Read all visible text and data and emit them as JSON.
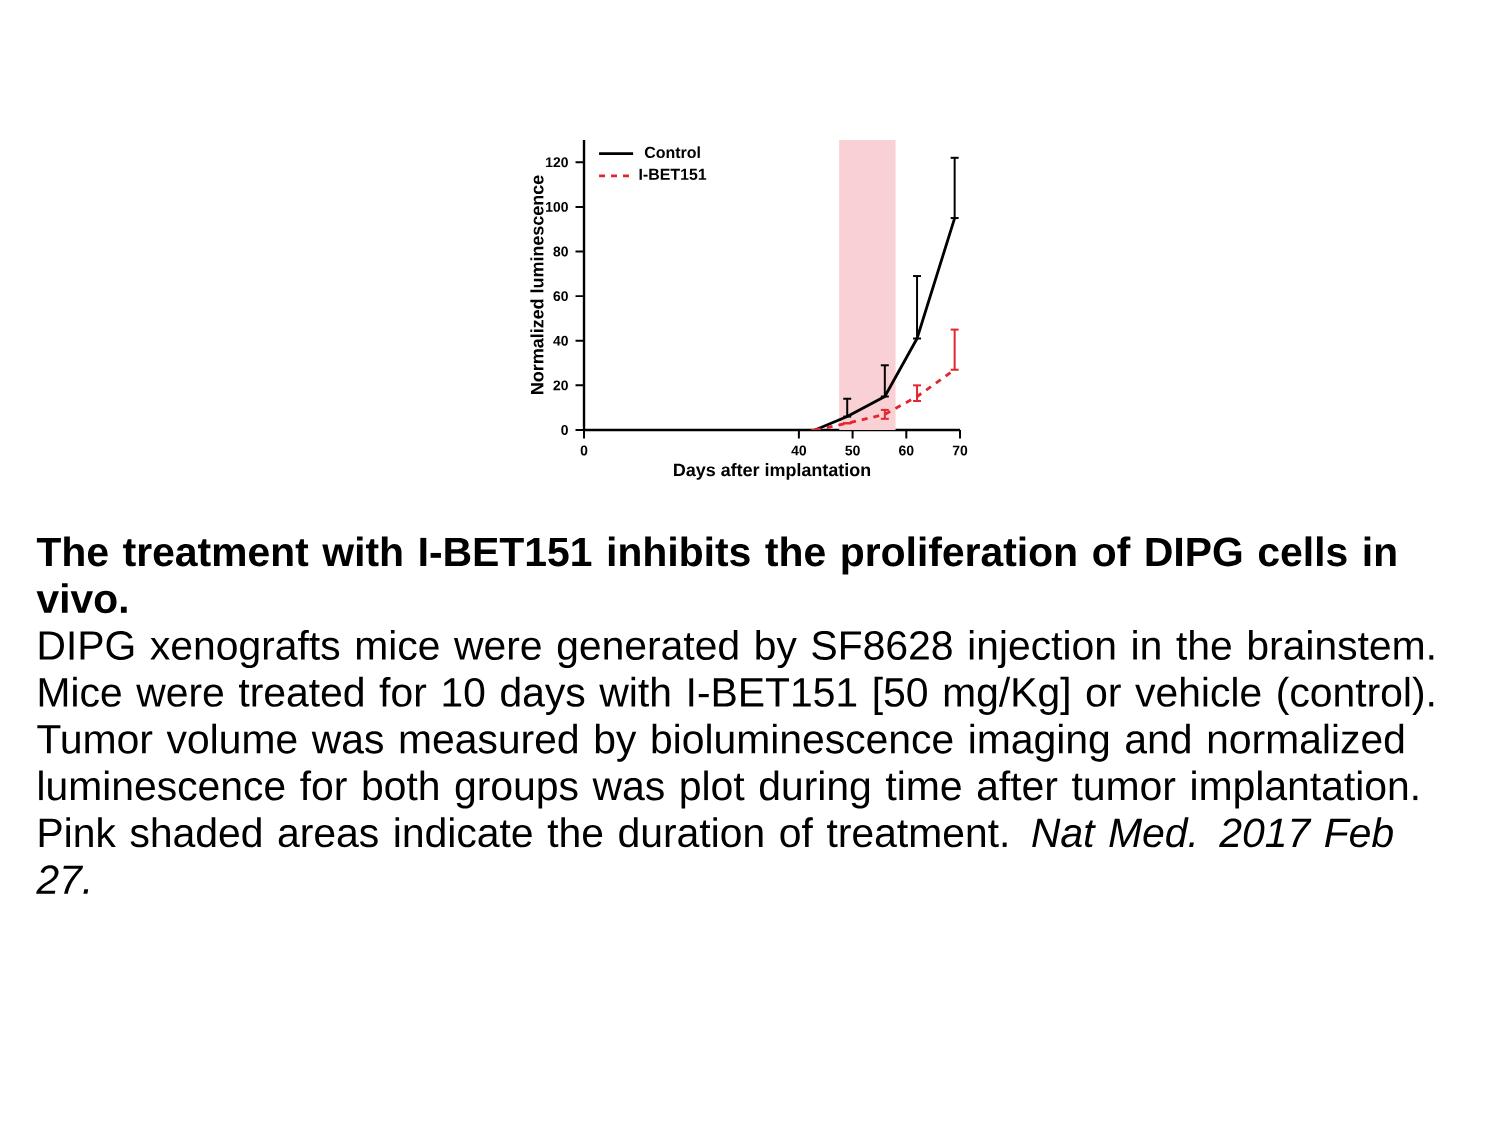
{
  "chart_data": {
    "type": "line",
    "title": "The treatment with I-BET151 inhibits the proliferation of DIPG cells in vivo.",
    "xlabel": "Days after implantation",
    "ylabel": "Normalized luminescence",
    "x": [
      43,
      49,
      56,
      62,
      69
    ],
    "series": [
      {
        "name": "Control",
        "color": "#000000",
        "line_style": "solid",
        "values": [
          0,
          6,
          15,
          41,
          95
        ],
        "errors": [
          null,
          [
            6,
            14
          ],
          [
            15,
            29
          ],
          [
            41,
            69
          ],
          [
            95,
            122
          ]
        ]
      },
      {
        "name": "I-BET151",
        "color": "#e0262f",
        "line_style": "dashed",
        "values": [
          0,
          3,
          7,
          15,
          27
        ],
        "errors": [
          null,
          null,
          [
            5,
            9
          ],
          [
            13,
            20
          ],
          [
            27,
            45
          ]
        ]
      }
    ],
    "bands": [
      {
        "axis": "x",
        "from": 47.5,
        "to": 58,
        "color": "#f9d0d3"
      }
    ],
    "xlim": [
      0,
      70
    ],
    "xticks": [
      0,
      40,
      50,
      60,
      70
    ],
    "ylim": [
      0,
      130
    ],
    "yticks": [
      0,
      20,
      40,
      60,
      80,
      100,
      120
    ],
    "legend": "top left",
    "grid": false,
    "marker": "none",
    "annotations": [
      "DIPG xenografts mice were generated by SF8628 injection in the brainstem. Mice were treated for 10 days with I-BET151 [50 mg/Kg] or vehicle (control). Tumor volume was measured by bioluminescence imaging and normalized luminescence for both groups was plot during time after tumor implantation. Pink shaded areas indicate the duration of treatment.",
      "Nat Med. 2017 Feb 27."
    ]
  }
}
